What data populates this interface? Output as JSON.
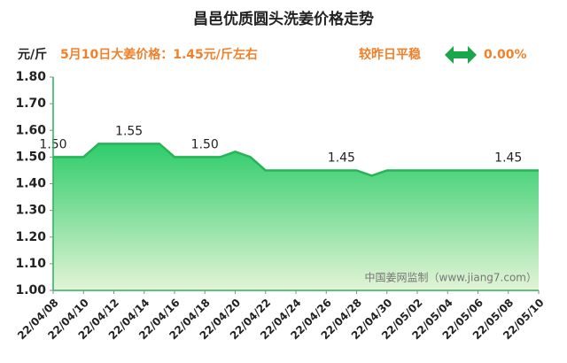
{
  "chart_data": {
    "type": "area",
    "title": "昌邑优质圆头洗姜价格走势",
    "y_label": "元/斤",
    "subtitle": "5月10日大姜价格：1.45元/斤左右",
    "change_label": "较昨日平稳",
    "change_value": "0.00%",
    "annotation": "中国姜网监制（www.jiang7.com）",
    "categories": [
      "22/04/08",
      null,
      "22/04/10",
      null,
      "22/04/12",
      null,
      "22/04/14",
      null,
      "22/04/16",
      null,
      "22/04/18",
      null,
      "22/04/20",
      null,
      "22/04/22",
      null,
      "22/04/24",
      null,
      "22/04/26",
      null,
      "22/04/28",
      null,
      "22/04/30",
      null,
      "22/05/02",
      null,
      "22/05/04",
      null,
      "22/05/06",
      null,
      "22/05/08",
      null,
      "22/05/10"
    ],
    "values": [
      1.5,
      1.5,
      1.5,
      1.55,
      1.55,
      1.55,
      1.55,
      1.55,
      1.5,
      1.5,
      1.5,
      1.5,
      1.52,
      1.5,
      1.45,
      1.45,
      1.45,
      1.45,
      1.45,
      1.45,
      1.45,
      1.43,
      1.45,
      1.45,
      1.45,
      1.45,
      1.45,
      1.45,
      1.45,
      1.45,
      1.45,
      1.45,
      1.45
    ],
    "value_labels": [
      "1.50",
      null,
      null,
      null,
      null,
      "1.55",
      null,
      null,
      null,
      null,
      "1.50",
      null,
      null,
      null,
      null,
      null,
      null,
      null,
      null,
      "1.45",
      null,
      null,
      null,
      null,
      null,
      null,
      null,
      null,
      null,
      null,
      "1.45",
      null,
      null
    ],
    "color": "#27b457",
    "ylim": [
      1.0,
      1.8
    ],
    "yticks": [
      {
        "value": 1.0,
        "label": "1.00"
      },
      {
        "value": 1.1,
        "label": "1.10"
      },
      {
        "value": 1.2,
        "label": "1.20"
      },
      {
        "value": 1.3,
        "label": "1.30"
      },
      {
        "value": 1.4,
        "label": "1.40"
      },
      {
        "value": 1.5,
        "label": "1.50"
      },
      {
        "value": 1.6,
        "label": "1.60"
      },
      {
        "value": 1.7,
        "label": "1.70"
      },
      {
        "value": 1.8,
        "label": "1.80"
      }
    ]
  }
}
